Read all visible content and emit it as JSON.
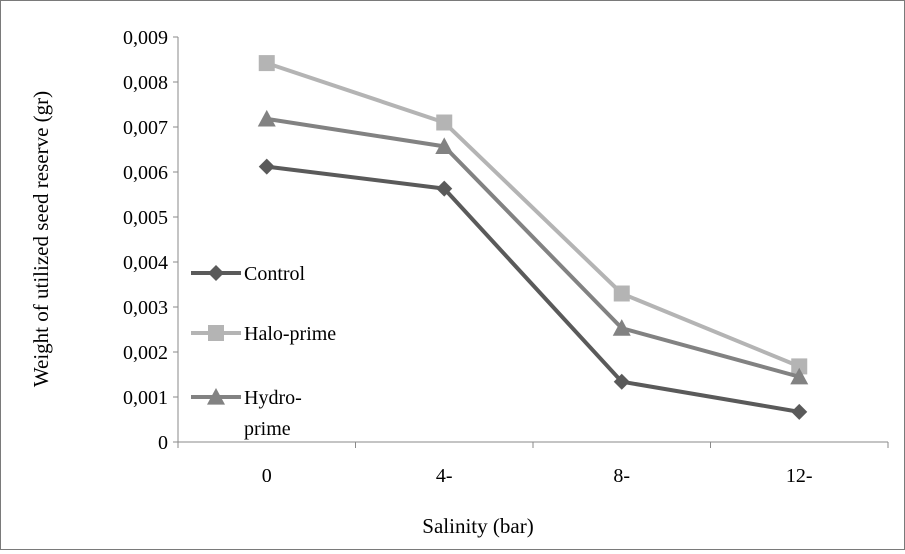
{
  "chart_data": {
    "type": "line",
    "categories": [
      "0",
      "4-",
      "8-",
      "12-"
    ],
    "xlabel": "Salinity (bar)",
    "ylabel": "Weight  of utilized seed reserve (gr)",
    "ylim": [
      0,
      0.009
    ],
    "yticks": [
      "0",
      "0,001",
      "0,002",
      "0,003",
      "0,004",
      "0,005",
      "0,006",
      "0,007",
      "0,008",
      "0,009"
    ],
    "grid": false,
    "legend_position": "left",
    "series": [
      {
        "name": "Control",
        "values": [
          0.00612,
          0.00563,
          0.00134,
          0.00067
        ],
        "color": "#5a5a5a",
        "marker": "diamond"
      },
      {
        "name": "Halo-prime",
        "values": [
          0.00842,
          0.0071,
          0.0033,
          0.00168
        ],
        "color": "#b4b4b4",
        "marker": "square"
      },
      {
        "name": "Hydro-prime",
        "values": [
          0.00718,
          0.00657,
          0.00253,
          0.00145
        ],
        "color": "#828282",
        "marker": "triangle"
      }
    ],
    "legend": {
      "items": [
        {
          "lines": [
            "Control"
          ]
        },
        {
          "lines": [
            "Halo-prime"
          ]
        },
        {
          "lines": [
            "Hydro-",
            "prime"
          ]
        }
      ]
    }
  }
}
